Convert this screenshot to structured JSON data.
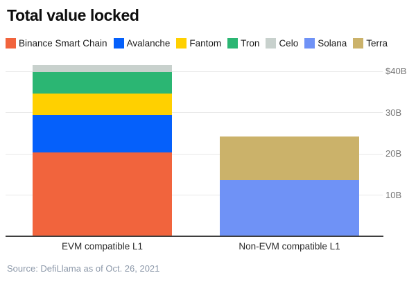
{
  "title": "Total value locked",
  "source": "Source: DefiLlama as of Oct. 26, 2021",
  "colors": {
    "title_text": "#0e0e0e",
    "legend_text": "#1a1a1a",
    "grid": "#e7e7e7",
    "axis_line": "#3f3f3f",
    "tick_label": "#757575",
    "category_label": "#2b2b2b",
    "source_text": "#8c98a9"
  },
  "legend": {
    "items": [
      {
        "label": "Binance Smart Chain",
        "color": "#f1643d"
      },
      {
        "label": "Avalanche",
        "color": "#0560fb"
      },
      {
        "label": "Fantom",
        "color": "#ffd000"
      },
      {
        "label": "Tron",
        "color": "#2bb673"
      },
      {
        "label": "Celo",
        "color": "#c8d1cd"
      },
      {
        "label": "Solana",
        "color": "#6f92f6"
      },
      {
        "label": "Terra",
        "color": "#cbb26a"
      }
    ]
  },
  "chart_data": {
    "type": "bar",
    "stacked": true,
    "title": "Total value locked",
    "xlabel": "",
    "ylabel": "",
    "unit": "billions USD",
    "categories": [
      "EVM compatible L1",
      "Non-EVM compatible L1"
    ],
    "series": [
      {
        "name": "Binance Smart Chain",
        "color": "#f1643d",
        "values": [
          20.4,
          0
        ]
      },
      {
        "name": "Avalanche",
        "color": "#0560fb",
        "values": [
          9.0,
          0
        ]
      },
      {
        "name": "Fantom",
        "color": "#ffd000",
        "values": [
          5.3,
          0
        ]
      },
      {
        "name": "Tron",
        "color": "#2bb673",
        "values": [
          5.1,
          0
        ]
      },
      {
        "name": "Celo",
        "color": "#c8d1cd",
        "values": [
          1.7,
          0
        ]
      },
      {
        "name": "Solana",
        "color": "#6f92f6",
        "values": [
          0,
          13.6
        ]
      },
      {
        "name": "Terra",
        "color": "#cbb26a",
        "values": [
          0,
          10.6
        ]
      }
    ],
    "category_totals": [
      41.5,
      24.2
    ],
    "yticks": [
      {
        "value": 40,
        "label": "$40B"
      },
      {
        "value": 30,
        "label": "30B"
      },
      {
        "value": 20,
        "label": "20B"
      },
      {
        "value": 10,
        "label": "10B"
      }
    ],
    "ylim": [
      0,
      42
    ],
    "grid": true,
    "legend_position": "top"
  }
}
